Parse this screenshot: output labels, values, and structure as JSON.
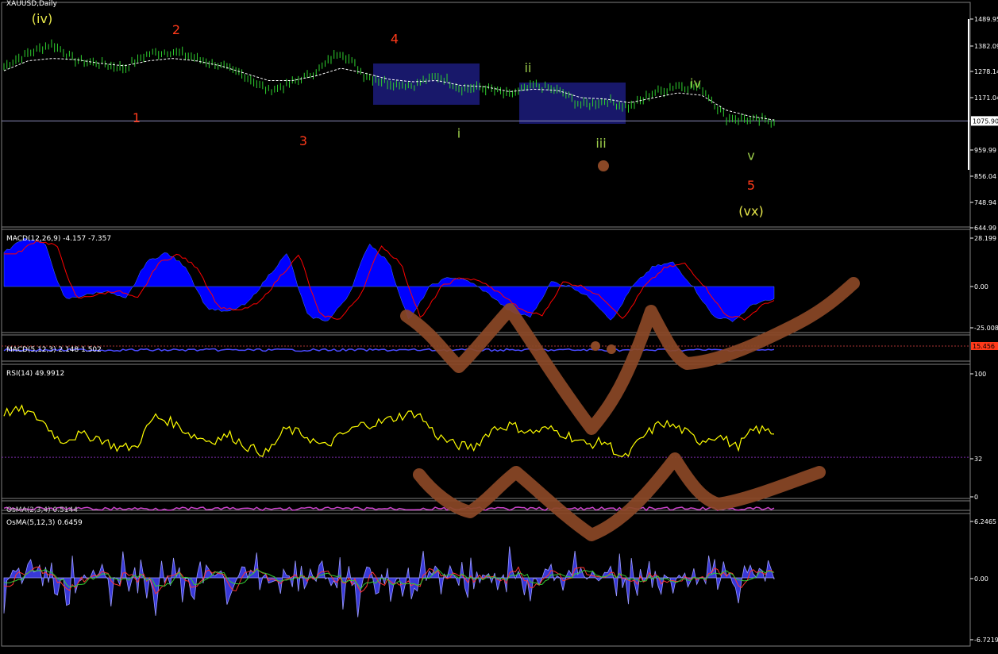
{
  "colors": {
    "background": "#000000",
    "price": "#2fd12f",
    "ma": "#ffffff",
    "wave_red": "#ff3a1a",
    "wave_yellow": "#e8e84a",
    "wave_green": "#9ccc4a",
    "macd_hist": "#0000ff",
    "signal": "#ff0000",
    "rsi": "#ffff00",
    "osma_area": "#3838d8",
    "osma_bright": "#9999ff",
    "drawing": "#8b4826",
    "box": "#191970",
    "hline": "#8a8ab8"
  },
  "panes": {
    "main": {
      "title": "XAUUSD,Daily",
      "price_line": "1075.90",
      "ticks": [
        "1489.95",
        "1382.09",
        "1278.14",
        "1171.04",
        "959.99",
        "856.04",
        "748.94",
        "644.99"
      ]
    },
    "macd": {
      "title": "MACD(12,26,9) -4.157 -7.357",
      "ticks": [
        "28.199",
        "0.00",
        "-25.008"
      ]
    },
    "macd2": {
      "title": "MACD(5,12,3) 2.148 1.502",
      "badge": "15.456"
    },
    "rsi": {
      "title": "RSI(14) 49.9912",
      "ticks": [
        "100",
        "32",
        "0"
      ]
    },
    "osma2": {
      "title": "OsMA(2,3,4) 0.5144"
    },
    "osma": {
      "title": "OsMA(5,12,3) 0.6459",
      "ticks": [
        "6.2465",
        "0.00",
        "-6.7219"
      ]
    }
  },
  "wave_labels": [
    {
      "text": "(iv)",
      "color": "wave_yellow",
      "price": 1480
    },
    {
      "text": "2",
      "color": "wave_red",
      "price": 1450
    },
    {
      "text": "1",
      "color": "wave_red",
      "price": 1130
    },
    {
      "text": "3",
      "color": "wave_red",
      "price": 1040
    },
    {
      "text": "4",
      "color": "wave_red",
      "price": 1420
    },
    {
      "text": "ii",
      "color": "wave_green",
      "price": 1330
    },
    {
      "text": "i",
      "color": "wave_green",
      "price": 1060
    },
    {
      "text": "iii",
      "color": "wave_green",
      "price": 1030
    },
    {
      "text": "iv",
      "color": "wave_green",
      "price": 1260
    },
    {
      "text": "v",
      "color": "wave_green",
      "price": 990
    },
    {
      "text": "5",
      "color": "wave_red",
      "price": 870
    },
    {
      "text": "(vx)",
      "color": "wave_yellow",
      "price": 770
    }
  ],
  "chart_data": {
    "type": "line",
    "symbol": "XAUUSD",
    "timeframe": "Daily",
    "price_series_anchors": [
      1300,
      1350,
      1390,
      1320,
      1310,
      1290,
      1350,
      1360,
      1330,
      1300,
      1260,
      1200,
      1230,
      1280,
      1360,
      1260,
      1230,
      1220,
      1260,
      1210,
      1210,
      1180,
      1220,
      1200,
      1140,
      1160,
      1130,
      1190,
      1220,
      1210,
      1090,
      1080,
      1075
    ],
    "ma_series_anchors": [
      1280,
      1320,
      1330,
      1325,
      1310,
      1300,
      1320,
      1330,
      1320,
      1300,
      1270,
      1240,
      1240,
      1260,
      1290,
      1270,
      1245,
      1235,
      1240,
      1220,
      1215,
      1195,
      1205,
      1200,
      1170,
      1165,
      1150,
      1170,
      1190,
      1180,
      1120,
      1095,
      1080
    ],
    "main_ylim": [
      644.99,
      1489.95
    ],
    "macd_ylim": [
      -25.008,
      28.199
    ],
    "rsi_ylim": [
      0,
      100
    ],
    "rsi_level": 32,
    "osma_ylim": [
      -6.7219,
      6.2465
    ]
  }
}
